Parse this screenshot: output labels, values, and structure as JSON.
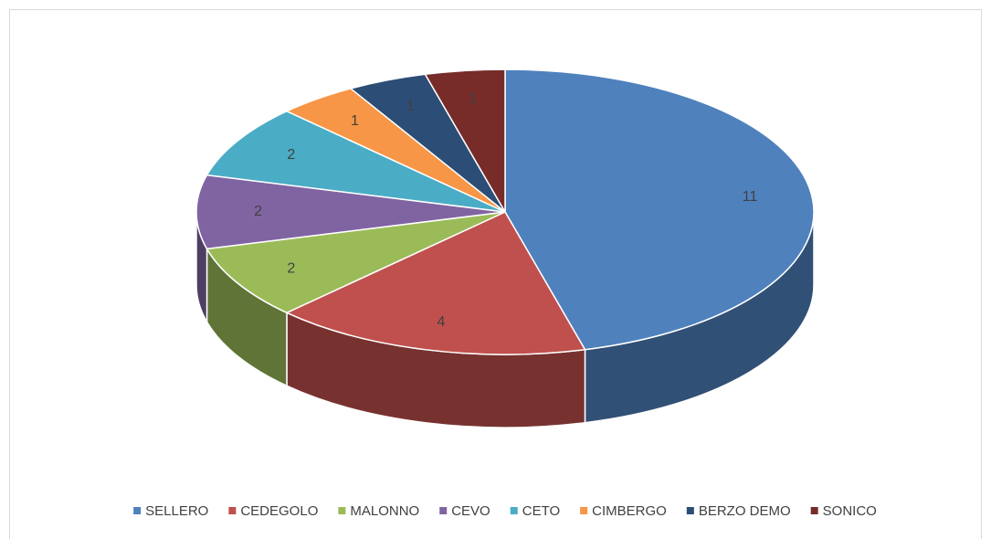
{
  "chart_data": {
    "type": "pie3d",
    "categories": [
      "SELLERO",
      "CEDEGOLO",
      "MALONNO",
      "CEVO",
      "CETO",
      "CIMBERGO",
      "BERZO DEMO",
      "SONICO"
    ],
    "values": [
      11,
      4,
      2,
      2,
      2,
      1,
      1,
      1
    ],
    "colors": [
      "#4f81bd",
      "#c0504d",
      "#9bbb59",
      "#8064a2",
      "#4bacc6",
      "#f79646",
      "#2c4d75",
      "#772c2a"
    ],
    "legend": "bottom"
  }
}
